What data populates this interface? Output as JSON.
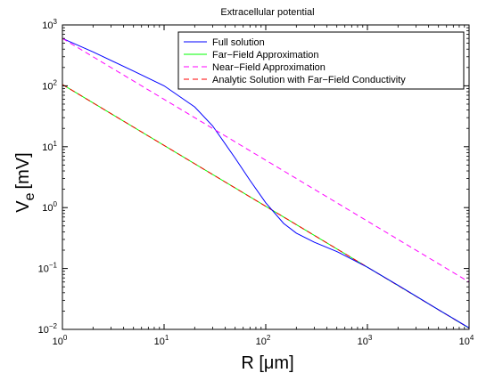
{
  "chart_data": {
    "type": "line",
    "title": "Extracellular potential",
    "xlabel": "R [μm]",
    "ylabel": "V",
    "ylabel_subscript": "e",
    "ylabel_unit": "[mV]",
    "xscale": "log",
    "yscale": "log",
    "xlim": [
      1,
      10000
    ],
    "ylim": [
      0.01,
      1000
    ],
    "grid": false,
    "legend_position": "top-right",
    "x_ticks": [
      {
        "value": 1,
        "base": "10",
        "exp": "0"
      },
      {
        "value": 10,
        "base": "10",
        "exp": "1"
      },
      {
        "value": 100,
        "base": "10",
        "exp": "2"
      },
      {
        "value": 1000,
        "base": "10",
        "exp": "3"
      },
      {
        "value": 10000,
        "base": "10",
        "exp": "4"
      }
    ],
    "y_ticks": [
      {
        "value": 0.01,
        "base": "10",
        "exp": "−2"
      },
      {
        "value": 0.1,
        "base": "10",
        "exp": "−1"
      },
      {
        "value": 1,
        "base": "10",
        "exp": "0"
      },
      {
        "value": 10,
        "base": "10",
        "exp": "1"
      },
      {
        "value": 100,
        "base": "10",
        "exp": "2"
      },
      {
        "value": 1000,
        "base": "10",
        "exp": "3"
      }
    ],
    "series": [
      {
        "name": "Full solution",
        "color": "#0000ff",
        "dash": "solid",
        "x": [
          1,
          2,
          5,
          10,
          20,
          30,
          50,
          70,
          100,
          150,
          200,
          300,
          500,
          1000,
          2000,
          5000,
          10000
        ],
        "y": [
          600,
          360,
          175,
          100,
          45,
          22,
          6.5,
          2.8,
          1.2,
          0.55,
          0.38,
          0.27,
          0.19,
          0.105,
          0.053,
          0.021,
          0.0106
        ]
      },
      {
        "name": "Far−Field Approximation",
        "color": "#00ff00",
        "dash": "solid",
        "x": [
          1,
          10000
        ],
        "y": [
          105,
          0.0105
        ]
      },
      {
        "name": "Near−Field Approximation",
        "color": "#ff00ff",
        "dash": "dashed",
        "x": [
          1,
          10000
        ],
        "y": [
          600,
          0.06
        ]
      },
      {
        "name": "Analytic Solution with Far−Field Conductivity",
        "color": "#ff0000",
        "dash": "dashed",
        "x": [
          1,
          10000
        ],
        "y": [
          105,
          0.0105
        ]
      }
    ]
  }
}
